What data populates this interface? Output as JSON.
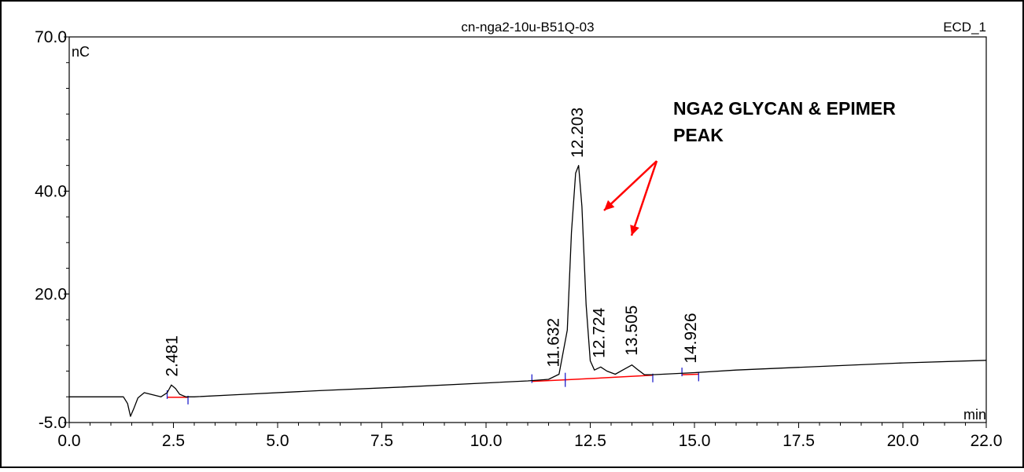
{
  "chart_data": {
    "type": "line",
    "title": "cn-nga2-10u-B51Q-03",
    "channel": "ECD_1",
    "ylabel": "nC",
    "xlabel": "min",
    "xlim": [
      0.0,
      22.0
    ],
    "ylim": [
      -5.0,
      70.0
    ],
    "x_ticks": [
      "0.0",
      "2.5",
      "5.0",
      "7.5",
      "10.0",
      "12.5",
      "15.0",
      "17.5",
      "20.0",
      "22.0"
    ],
    "x_tick_values": [
      0.0,
      2.5,
      5.0,
      7.5,
      10.0,
      12.5,
      15.0,
      17.5,
      20.0,
      22.0
    ],
    "y_ticks": [
      "-5.0",
      "20.0",
      "40.0",
      "70.0"
    ],
    "y_tick_values": [
      -5.0,
      20.0,
      40.0,
      70.0
    ],
    "peaks": [
      {
        "label": "2.481",
        "rt": 2.481
      },
      {
        "label": "11.632",
        "rt": 11.632
      },
      {
        "label": "12.203",
        "rt": 12.203
      },
      {
        "label": "12.724",
        "rt": 12.724
      },
      {
        "label": "13.505",
        "rt": 13.505
      },
      {
        "label": "14.926",
        "rt": 14.926
      }
    ],
    "annotation": {
      "lines": [
        "NGA2 GLYCAN & EPIMER",
        "PEAK"
      ],
      "color": "#ff0000"
    },
    "series": [
      {
        "color": "#000000",
        "x": [
          0.0,
          1.3,
          1.4,
          1.47,
          1.55,
          1.65,
          1.8,
          2.0,
          2.2,
          2.35,
          2.45,
          2.55,
          2.65,
          2.8,
          3.0,
          4.0,
          6.0,
          8.0,
          10.0,
          11.0,
          11.5,
          11.75,
          11.95,
          12.05,
          12.15,
          12.22,
          12.3,
          12.4,
          12.5,
          12.6,
          12.75,
          12.9,
          13.1,
          13.3,
          13.5,
          13.65,
          13.8,
          14.0,
          15.0,
          16.0,
          18.0,
          20.0,
          22.0
        ],
        "y": [
          0.0,
          0.0,
          -1.3,
          -3.8,
          -2.3,
          -0.2,
          0.8,
          0.4,
          0.0,
          0.8,
          2.3,
          1.6,
          0.5,
          0.0,
          0.0,
          0.4,
          1.2,
          1.9,
          2.7,
          3.1,
          3.4,
          4.4,
          13.0,
          32.0,
          43.5,
          45.0,
          37.0,
          18.0,
          7.0,
          5.2,
          5.8,
          5.0,
          4.4,
          5.3,
          6.2,
          5.2,
          4.3,
          4.3,
          4.7,
          5.2,
          5.9,
          6.6,
          7.1
        ]
      }
    ],
    "baselines": [
      {
        "x": [
          2.35,
          2.85
        ],
        "y": [
          -0.1,
          -0.1
        ],
        "color": "#ff0000"
      },
      {
        "x": [
          11.1,
          11.9
        ],
        "y": [
          3.0,
          3.3
        ],
        "color": "#ff0000"
      },
      {
        "x": [
          11.9,
          14.0
        ],
        "y": [
          3.3,
          4.2
        ],
        "color": "#ff0000"
      },
      {
        "x": [
          14.7,
          15.1
        ],
        "y": [
          4.3,
          4.4
        ],
        "color": "#ff0000"
      }
    ],
    "grid": false,
    "legend": "none"
  }
}
